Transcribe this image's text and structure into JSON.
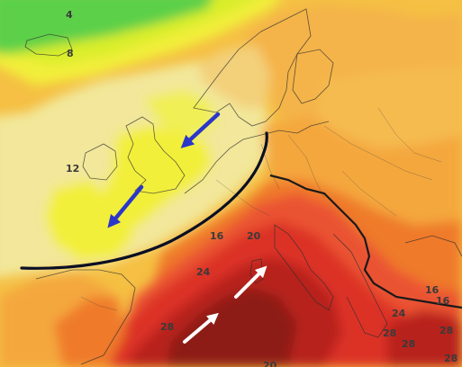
{
  "map": {
    "temperature_labels": {
      "t4": "4",
      "t8": "8",
      "t12": "12",
      "t16_a": "16",
      "t20": "20",
      "t24_a": "24",
      "t28_a": "28",
      "t16_b": "16",
      "t16_c": "16",
      "t24_b": "24",
      "t28_b": "28",
      "t28_c": "28",
      "t28_d": "28",
      "t28_e": "28",
      "t20_bottom": "20"
    },
    "colors": {
      "green": "#5cd04a",
      "light_green": "#a7e23a",
      "yellow_green": "#d9ee2a",
      "yellow": "#f2ef3a",
      "light_yellow": "#f5ea86",
      "pale_yellow": "#f2e79a",
      "orange_yellow": "#f5c043",
      "light_orange": "#f4a73e",
      "orange": "#ef7a2c",
      "red_orange": "#ea5230",
      "red": "#dc3128",
      "dark_red": "#b8201e",
      "deep_red": "#8e1a16",
      "front_line": "#0a0f24",
      "cool_arrow": "#2a37c9",
      "warm_arrow": "#ffffff",
      "coastline": "#2d2d2d"
    },
    "arrows": [
      {
        "name": "cool-air-arrow-north",
        "type": "cold advection"
      },
      {
        "name": "cool-air-arrow-west",
        "type": "cold advection"
      },
      {
        "name": "warm-air-arrow-upper",
        "type": "warm advection"
      },
      {
        "name": "warm-air-arrow-lower",
        "type": "warm advection"
      }
    ]
  }
}
